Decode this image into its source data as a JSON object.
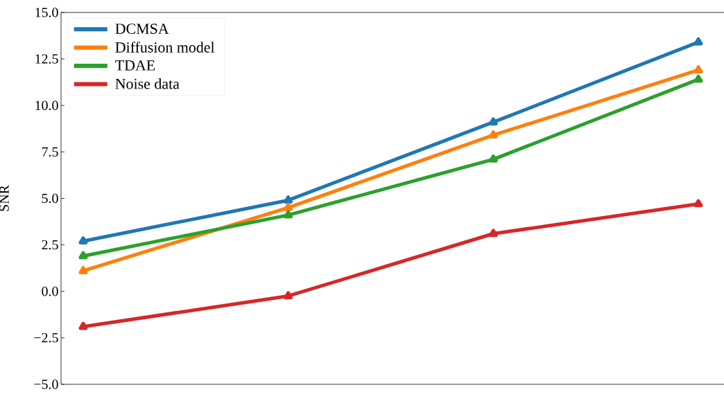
{
  "chart_data": {
    "type": "line",
    "ylabel": "SNR",
    "categories": [
      null,
      null,
      null,
      null
    ],
    "series": [
      {
        "name": "DCMSA",
        "color": "#1f77b4",
        "values": [
          2.7,
          4.9,
          9.1,
          13.4
        ]
      },
      {
        "name": "Diffusion model",
        "color": "#ff7f0e",
        "values": [
          1.1,
          4.5,
          8.4,
          11.9
        ]
      },
      {
        "name": "TDAE",
        "color": "#2ca02c",
        "values": [
          1.9,
          4.1,
          7.1,
          11.4
        ]
      },
      {
        "name": "Noise data",
        "color": "#d62728",
        "values": [
          -1.9,
          -0.25,
          3.1,
          4.7
        ]
      }
    ],
    "ylim": [
      -5,
      15
    ],
    "yticks": [
      {
        "value": -5,
        "label": "−5.0"
      },
      {
        "value": -2.5,
        "label": "−2.5"
      },
      {
        "value": 0,
        "label": "0.0"
      },
      {
        "value": 2.5,
        "label": "2.5"
      },
      {
        "value": 5,
        "label": "5.0"
      },
      {
        "value": 7.5,
        "label": "7.5"
      },
      {
        "value": 10,
        "label": "10.0"
      },
      {
        "value": 12.5,
        "label": "12.5"
      },
      {
        "value": 15,
        "label": "15.0"
      }
    ],
    "tick_labels": "y",
    "legend": "top left",
    "marker": "triangle",
    "line_style": "solid"
  }
}
